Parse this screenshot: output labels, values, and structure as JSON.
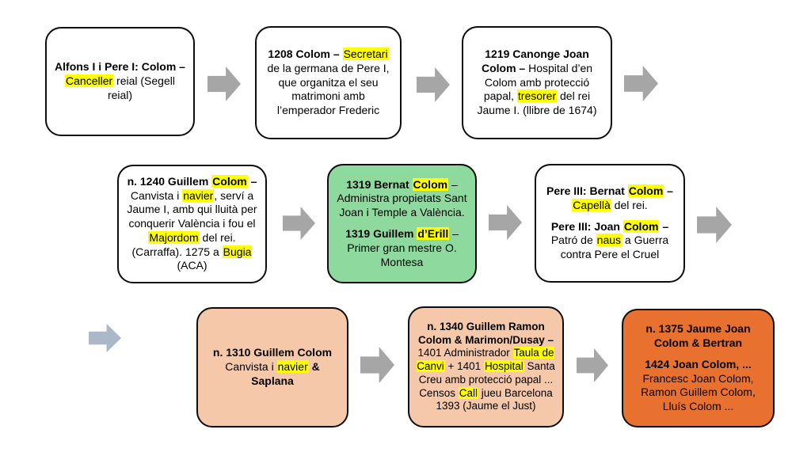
{
  "colors": {
    "background": "#ffffff",
    "box_border": "#0d0d0d",
    "highlight_yellow": "#ffff00",
    "arrow_gray": "#a6a6a6",
    "arrow_bluegray": "#aab8c7",
    "green_fill": "#8eda9e",
    "peach_fill": "#f5c8aa",
    "orange_fill": "#e87130",
    "white_fill": "#ffffff"
  },
  "boxes": [
    {
      "name": "alfons-pere-canceller",
      "fill": "white_fill",
      "paragraphs": [
        [
          {
            "t": "Alfons I i Pere I: Colom – ",
            "bold": true
          },
          {
            "t": "Canceller",
            "hl": true
          },
          {
            "t": " reial (Segell reial)"
          }
        ]
      ]
    },
    {
      "name": "1208-colom-secretari",
      "fill": "white_fill",
      "paragraphs": [
        [
          {
            "t": "1208 Colom – ",
            "bold": true
          },
          {
            "t": "Secretari",
            "hl": true
          },
          {
            "t": " de la germana de Pere I, que organitza el seu matrimoni amb l’emperador Frederic"
          }
        ]
      ]
    },
    {
      "name": "1219-canonge-joan-colom",
      "fill": "white_fill",
      "paragraphs": [
        [
          {
            "t": "1219 Canonge Joan Colom – ",
            "bold": true
          },
          {
            "t": "Hospital d’en Colom amb protecció papal, "
          },
          {
            "t": "tresorer",
            "hl": true
          },
          {
            "t": " del rei Jaume I. (llibre de 1674)"
          }
        ]
      ]
    },
    {
      "name": "1240-guillem-colom",
      "fill": "white_fill",
      "paragraphs": [
        [
          {
            "t": "n. 1240 Guillem ",
            "bold": true
          },
          {
            "t": "Colom",
            "bold": true,
            "hl": true
          },
          {
            "t": " – ",
            "bold": true
          },
          {
            "t": "Canvista i "
          },
          {
            "t": "navier",
            "hl": true
          },
          {
            "t": ", serví a Jaume I, amb qui lluità per conquerir València i fou el "
          },
          {
            "t": "Majordom",
            "hl": true
          },
          {
            "t": " del rei. (Carraffa). 1275 a "
          },
          {
            "t": "Bugia",
            "hl": true
          },
          {
            "t": " (ACA)"
          }
        ]
      ]
    },
    {
      "name": "1319-bernat-colom-guillem-derill",
      "fill": "green_fill",
      "paragraphs": [
        [
          {
            "t": "1319 Bernat ",
            "bold": true
          },
          {
            "t": "Colom",
            "bold": true,
            "hl": true
          },
          {
            "t": " – Administra propietats Sant Joan i Temple a València."
          }
        ],
        [
          {
            "t": "1319 Guillem ",
            "bold": true
          },
          {
            "t": "d’Erill",
            "bold": true,
            "hl": true
          },
          {
            "t": " – Primer gran mestre O. Montesa"
          }
        ]
      ]
    },
    {
      "name": "pere-iii-bernat-joan-colom",
      "fill": "white_fill",
      "paragraphs": [
        [
          {
            "t": "Pere III: Bernat ",
            "bold": true
          },
          {
            "t": "Colom",
            "bold": true,
            "hl": true
          },
          {
            "t": " – ",
            "bold": true
          },
          {
            "t": "Capellà",
            "hl": true
          },
          {
            "t": " del rei."
          }
        ],
        [
          {
            "t": "Pere III: Joan ",
            "bold": true
          },
          {
            "t": "Colom",
            "bold": true,
            "hl": true
          },
          {
            "t": " – ",
            "bold": true
          },
          {
            "t": "Patró de "
          },
          {
            "t": "naus",
            "hl": true
          },
          {
            "t": " a Guerra contra Pere el Cruel"
          }
        ]
      ]
    },
    {
      "name": "1310-guillem-colom-saplana",
      "fill": "peach_fill",
      "paragraphs": [
        [
          {
            "t": "n. 1310 Guillem Colom",
            "bold": true
          },
          {
            "t": " Canvista i "
          },
          {
            "t": "navier",
            "hl": true
          },
          {
            "t": " "
          },
          {
            "t": "& Saplana",
            "bold": true
          }
        ]
      ]
    },
    {
      "name": "1340-guillem-ramon-colom",
      "fill": "peach_fill",
      "paragraphs": [
        [
          {
            "t": "n. 1340 Guillem Ramon Colom & Marimon/Dusay – ",
            "bold": true
          },
          {
            "t": "1401 Administrador "
          },
          {
            "t": "Taula de Canvi",
            "hl": true
          },
          {
            "t": " + 1401 "
          },
          {
            "t": "Hospital",
            "hl": true
          },
          {
            "t": " Santa Creu amb protecció papal ... Censos "
          },
          {
            "t": "Call",
            "hl": true
          },
          {
            "t": " jueu Barcelona 1393 (Jaume el Just)"
          }
        ]
      ]
    },
    {
      "name": "1375-jaume-joan-colom-bertran",
      "fill": "orange_fill",
      "paragraphs": [
        [
          {
            "t": "n. 1375 Jaume Joan Colom & Bertran",
            "bold": true
          }
        ],
        [
          {
            "t": "1424 Joan Colom, ...",
            "bold": true
          },
          {
            "t": " Francesc Joan Colom, Ramon Guillem Colom, Lluís Colom ..."
          }
        ]
      ]
    }
  ],
  "arrows": [
    {
      "icon": "arrow-right-icon",
      "color": "#a6a6a6"
    },
    {
      "icon": "arrow-right-icon",
      "color": "#a6a6a6"
    },
    {
      "icon": "arrow-right-icon",
      "color": "#a6a6a6"
    },
    {
      "icon": "arrow-right-icon",
      "color": "#a6a6a6"
    },
    {
      "icon": "arrow-right-icon",
      "color": "#a6a6a6"
    },
    {
      "icon": "arrow-right-icon",
      "color": "#a6a6a6"
    },
    {
      "icon": "arrow-right-icon",
      "color": "#aab8c7"
    },
    {
      "icon": "arrow-right-icon",
      "color": "#a6a6a6"
    },
    {
      "icon": "arrow-right-icon",
      "color": "#a6a6a6"
    }
  ]
}
